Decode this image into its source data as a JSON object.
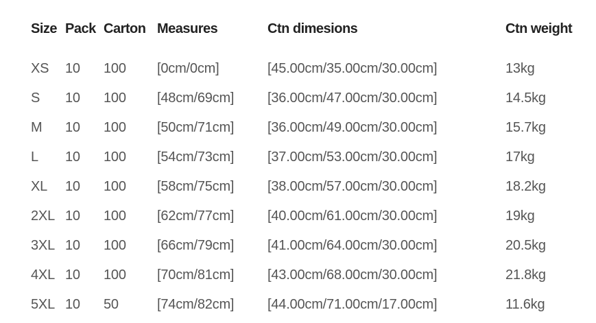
{
  "headers": [
    "Size",
    "Pack",
    "Carton",
    "Measures",
    "Ctn dimesions",
    "Ctn weight"
  ],
  "rows": [
    [
      "XS",
      "10",
      "100",
      "[0cm/0cm]",
      "[45.00cm/35.00cm/30.00cm]",
      "13kg"
    ],
    [
      "S",
      "10",
      "100",
      "[48cm/69cm]",
      "[36.00cm/47.00cm/30.00cm]",
      "14.5kg"
    ],
    [
      "M",
      "10",
      "100",
      "[50cm/71cm]",
      "[36.00cm/49.00cm/30.00cm]",
      "15.7kg"
    ],
    [
      "L",
      "10",
      "100",
      "[54cm/73cm]",
      "[37.00cm/53.00cm/30.00cm]",
      "17kg"
    ],
    [
      "XL",
      "10",
      "100",
      "[58cm/75cm]",
      "[38.00cm/57.00cm/30.00cm]",
      "18.2kg"
    ],
    [
      "2XL",
      "10",
      "100",
      "[62cm/77cm]",
      "[40.00cm/61.00cm/30.00cm]",
      "19kg"
    ],
    [
      "3XL",
      "10",
      "100",
      "[66cm/79cm]",
      "[41.00cm/64.00cm/30.00cm]",
      "20.5kg"
    ],
    [
      "4XL",
      "10",
      "100",
      "[70cm/81cm]",
      "[43.00cm/68.00cm/30.00cm]",
      "21.8kg"
    ],
    [
      "5XL",
      "10",
      "50",
      "[74cm/82cm]",
      "[44.00cm/71.00cm/17.00cm]",
      "11.6kg"
    ]
  ]
}
